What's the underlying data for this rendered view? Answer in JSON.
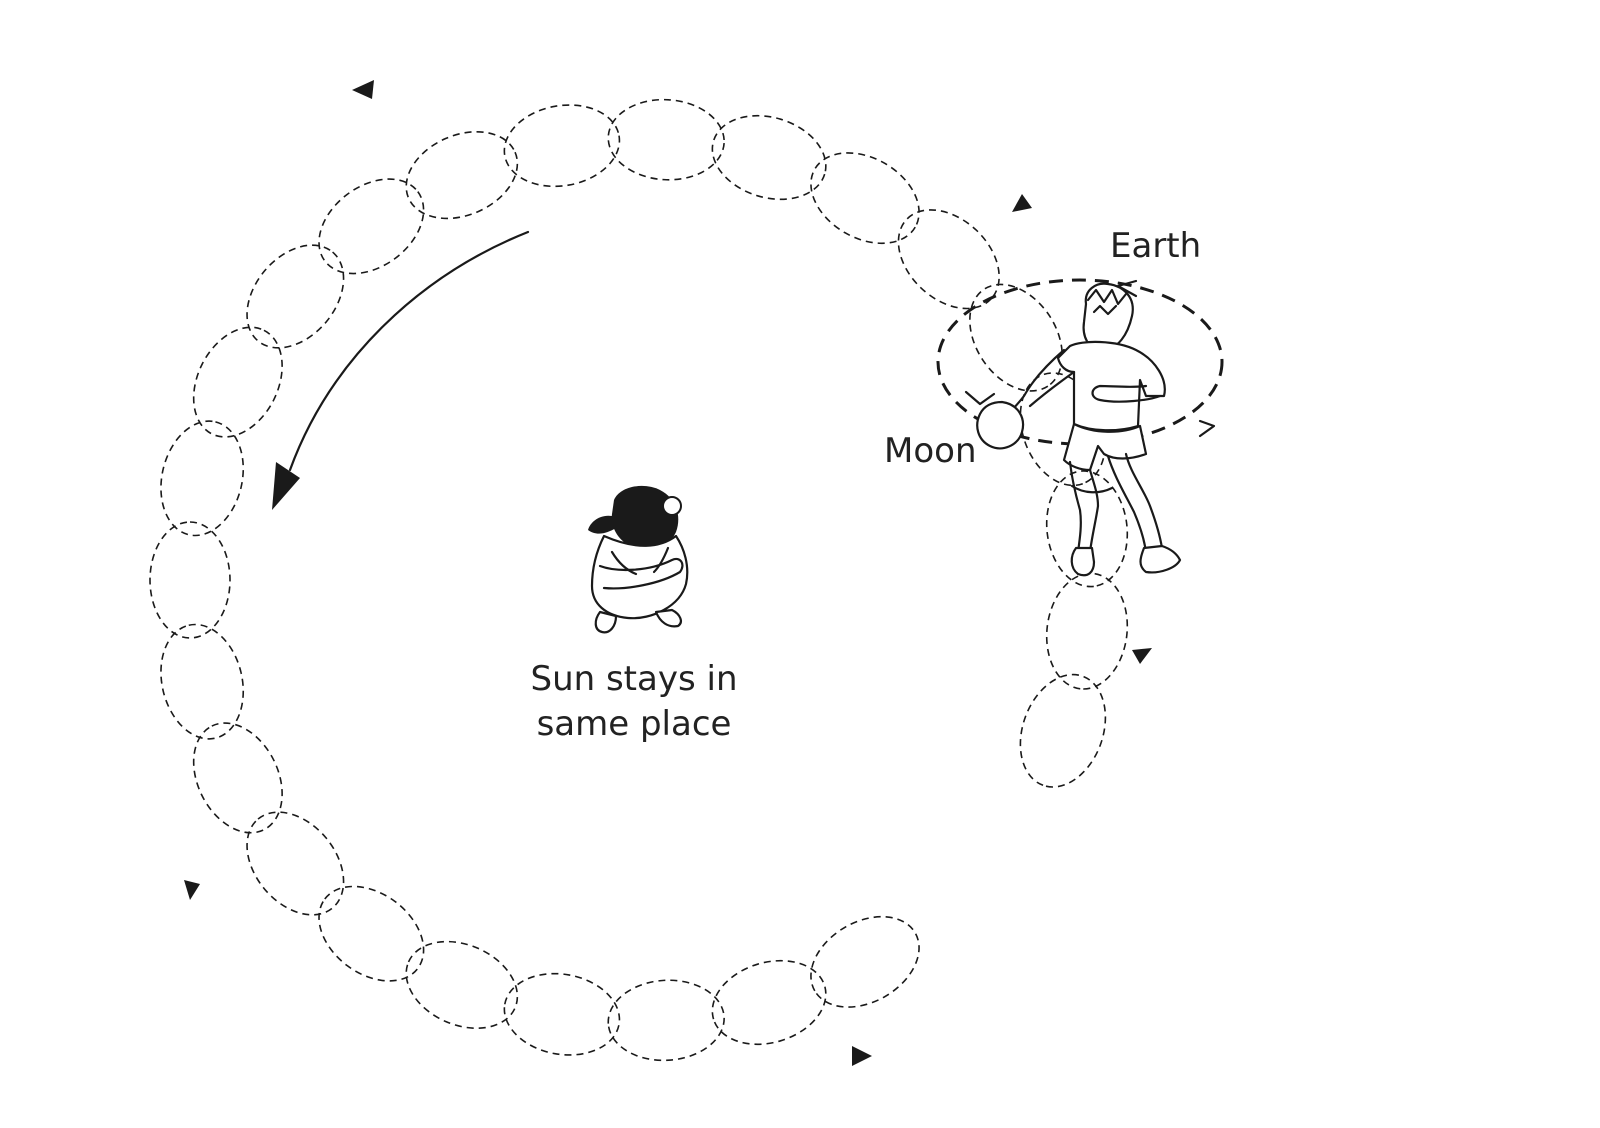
{
  "labels": {
    "earth": "Earth",
    "moon": "Moon",
    "sun_line1": "Sun stays in",
    "sun_line2": "same place"
  },
  "orbit": {
    "loop_count": 25,
    "start_angle_deg": -20,
    "end_angle_deg": 300
  },
  "colors": {
    "ink": "#1a1a1a",
    "background": "#ffffff"
  },
  "icons": [
    "girl-figure",
    "boy-figure",
    "moon-ball",
    "direction-arrow"
  ]
}
